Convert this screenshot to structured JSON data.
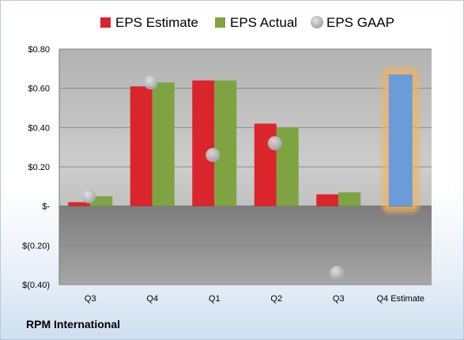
{
  "company": "RPM International",
  "chart_data": {
    "type": "bar",
    "categories": [
      "Q3",
      "Q4",
      "Q1",
      "Q2",
      "Q3",
      "Q4 Estimate"
    ],
    "series": [
      {
        "name": "EPS Estimate",
        "values": [
          0.02,
          0.61,
          0.64,
          0.42,
          0.06,
          null
        ],
        "color": "#d9252b"
      },
      {
        "name": "EPS Actual",
        "values": [
          0.05,
          0.63,
          0.64,
          0.4,
          0.07,
          null
        ],
        "color": "#7fa343"
      },
      {
        "name": "EPS GAAP",
        "type": "scatter",
        "values": [
          0.05,
          0.63,
          0.26,
          0.32,
          -0.34,
          null
        ],
        "color": "#b0b4b8"
      }
    ],
    "estimate_bar": {
      "category": "Q4 Estimate",
      "value": 0.67,
      "color": "#6b9bd8",
      "glow": "#f3b35a"
    },
    "y_ticks": [
      {
        "value": 0.8,
        "label": "$0.80"
      },
      {
        "value": 0.6,
        "label": "$0.60"
      },
      {
        "value": 0.4,
        "label": "$0.40"
      },
      {
        "value": 0.2,
        "label": "$0.20"
      },
      {
        "value": 0.0,
        "label": "$-"
      },
      {
        "value": -0.2,
        "label": "$(0.20)"
      },
      {
        "value": -0.4,
        "label": "$(0.40)"
      }
    ],
    "ylim": [
      -0.4,
      0.8
    ],
    "grid": true,
    "legend_position": "top"
  }
}
